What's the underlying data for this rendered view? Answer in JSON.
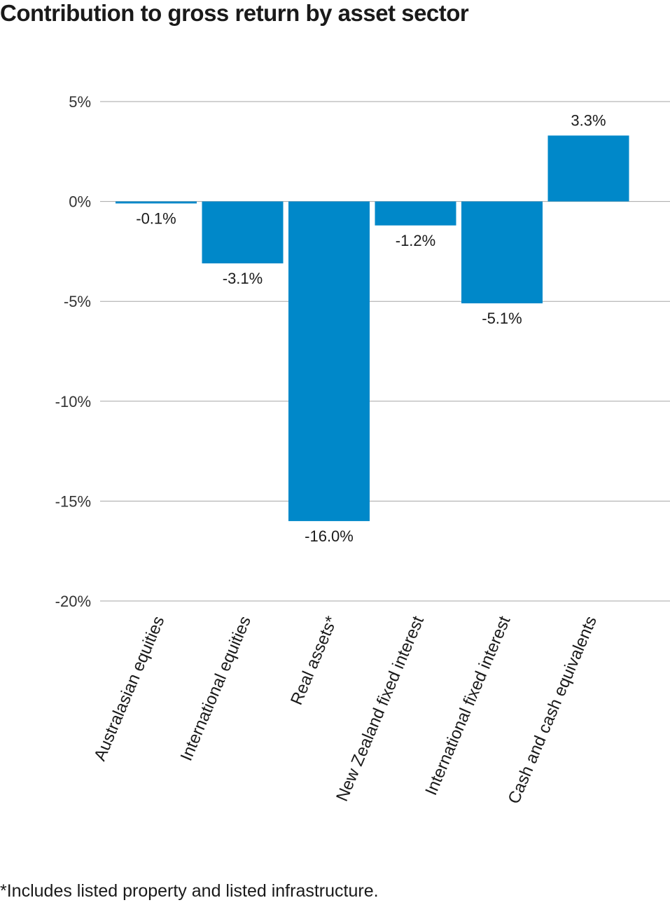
{
  "title": "Contribution to gross return by asset sector",
  "footnote": "*Includes listed property and listed infrastructure.",
  "chart_data": {
    "type": "bar",
    "title": "Contribution to gross return by asset sector",
    "xlabel": "",
    "ylabel": "",
    "categories": [
      "Australasian equities",
      "International equities",
      "Real assets*",
      "New Zealand fixed interest",
      "International fixed interest",
      "Cash and cash equivalents"
    ],
    "values": [
      -0.1,
      -3.1,
      -16.0,
      -1.2,
      -5.1,
      3.3
    ],
    "data_labels": [
      "-0.1%",
      "-3.1%",
      "-16.0%",
      "-1.2%",
      "-5.1%",
      "3.3%"
    ],
    "ylim": [
      -20,
      5
    ],
    "yticks": [
      5,
      0,
      -5,
      -10,
      -15,
      -20
    ],
    "ytick_labels": [
      "5%",
      "0%",
      "-5%",
      "-10%",
      "-15%",
      "-20%"
    ],
    "grid": true,
    "legend": "none",
    "bar_color": "#0088c9",
    "grid_color": "#a6a6a6"
  }
}
